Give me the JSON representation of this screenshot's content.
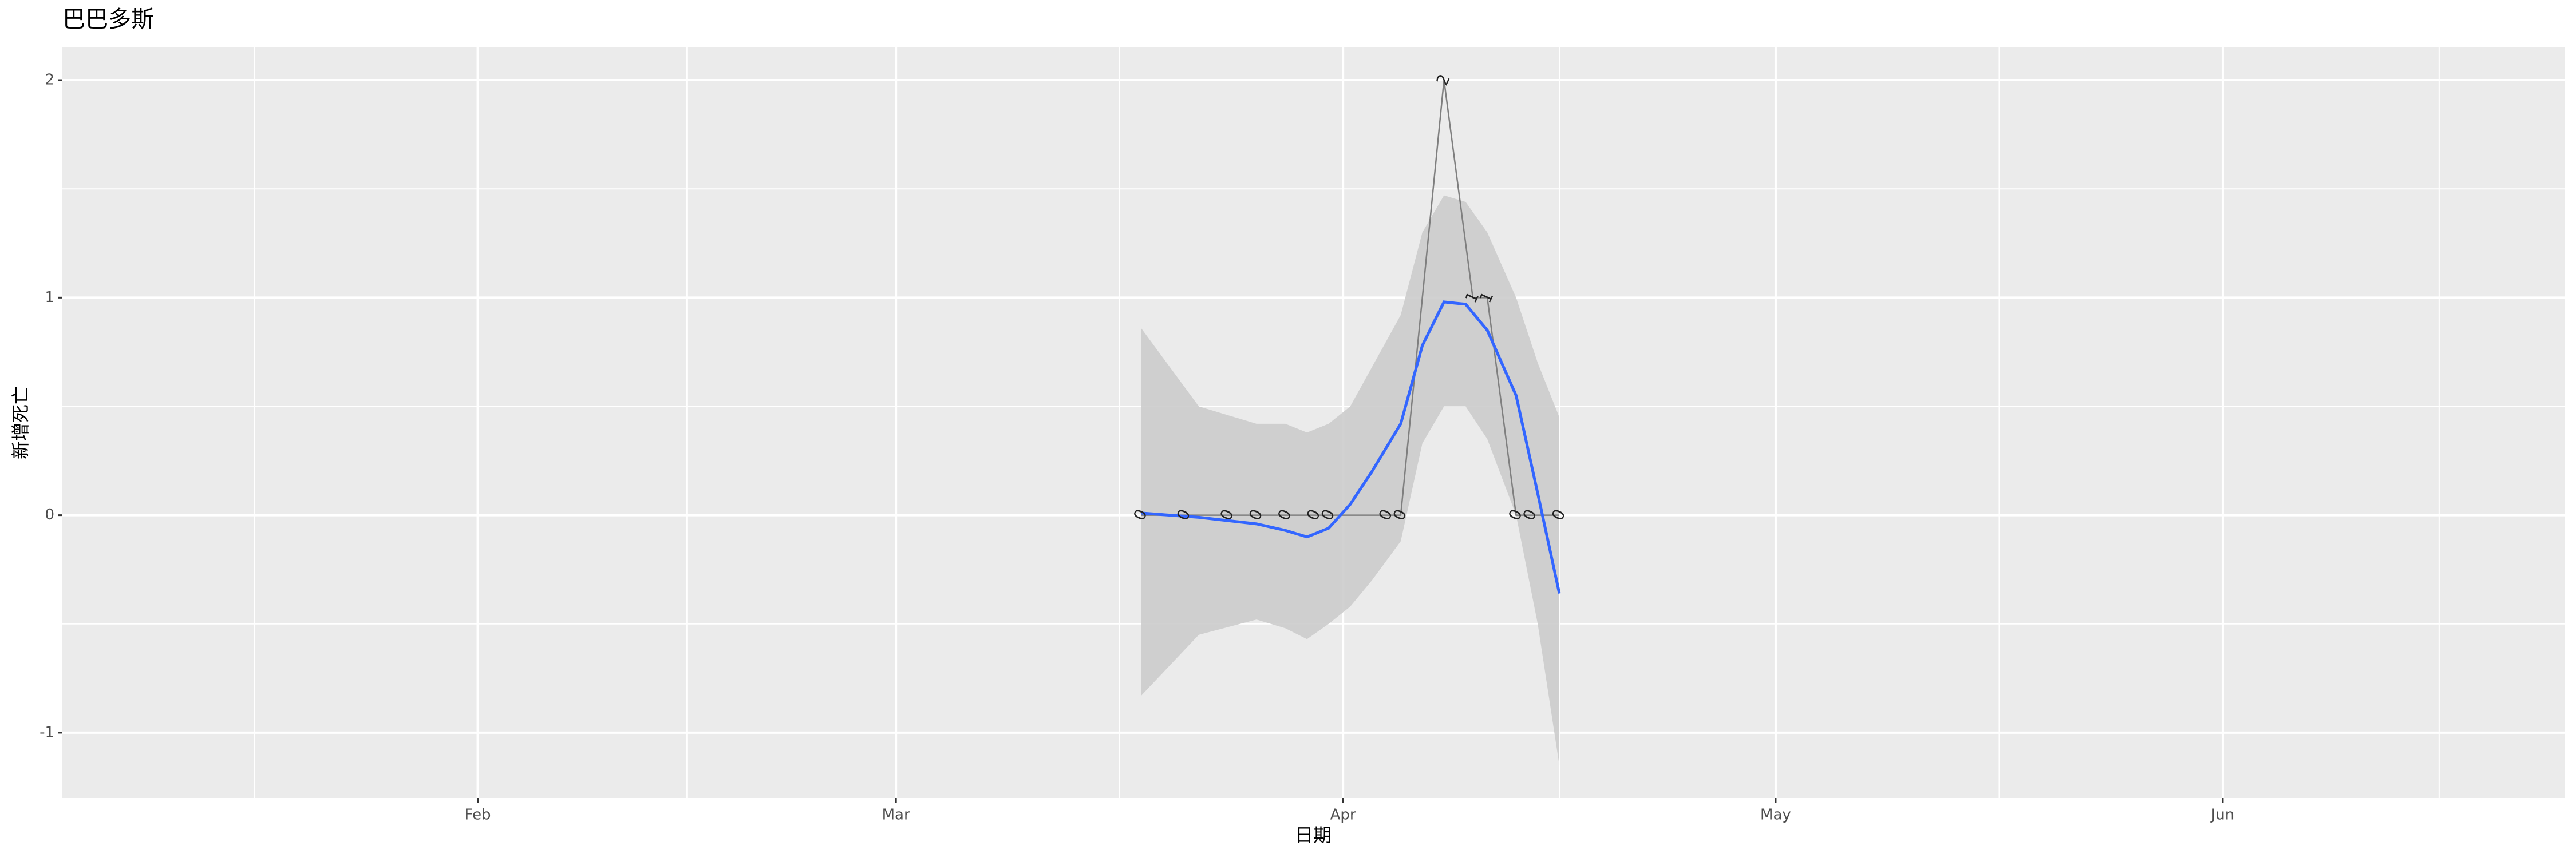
{
  "chart_data": {
    "type": "line",
    "title": "巴巴多斯",
    "x_label": "日期",
    "y_label": "新增死亡",
    "x": [
      78,
      81,
      84,
      86,
      88,
      90,
      91,
      95,
      96,
      99,
      101,
      102,
      104,
      105,
      107
    ],
    "values": [
      0,
      0,
      0,
      0,
      0,
      0,
      0,
      0,
      0,
      2,
      1,
      1,
      0,
      0,
      0
    ],
    "color": "#7f7f7f",
    "smooth": {
      "x": [
        78,
        82,
        86,
        88,
        89.5,
        91,
        92.5,
        94,
        96,
        97.5,
        99,
        100.5,
        102,
        104,
        105.5,
        107
      ],
      "values": [
        0.01,
        -0.01,
        -0.04,
        -0.07,
        -0.1,
        -0.06,
        0.05,
        0.2,
        0.42,
        0.78,
        0.98,
        0.97,
        0.85,
        0.55,
        0.1,
        -0.36
      ],
      "lower": [
        -0.83,
        -0.55,
        -0.48,
        -0.52,
        -0.57,
        -0.5,
        -0.42,
        -0.3,
        -0.12,
        0.33,
        0.5,
        0.5,
        0.35,
        0.0,
        -0.5,
        -1.15
      ],
      "upper": [
        0.86,
        0.5,
        0.42,
        0.42,
        0.38,
        0.42,
        0.5,
        0.68,
        0.92,
        1.3,
        1.47,
        1.44,
        1.3,
        1.0,
        0.7,
        0.45
      ],
      "color": "#3366ff",
      "band_color": "#cccccc"
    },
    "xlim": [
      3.2,
      176.7
    ],
    "xticks": [
      {
        "value": 32,
        "label": "Feb"
      },
      {
        "value": 61,
        "label": "Mar"
      },
      {
        "value": 92,
        "label": "Apr"
      },
      {
        "value": 122,
        "label": "May"
      },
      {
        "value": 153,
        "label": "Jun"
      }
    ],
    "xminor": [
      16.5,
      46.5,
      76.5,
      107,
      137.5,
      168
    ],
    "ylim": [
      -1.3,
      2.15
    ],
    "yticks": [
      -1,
      0,
      1,
      2
    ],
    "yminor": [
      -0.5,
      0.5,
      1.5
    ],
    "grid": true,
    "panel_color": "#ebebeb"
  }
}
